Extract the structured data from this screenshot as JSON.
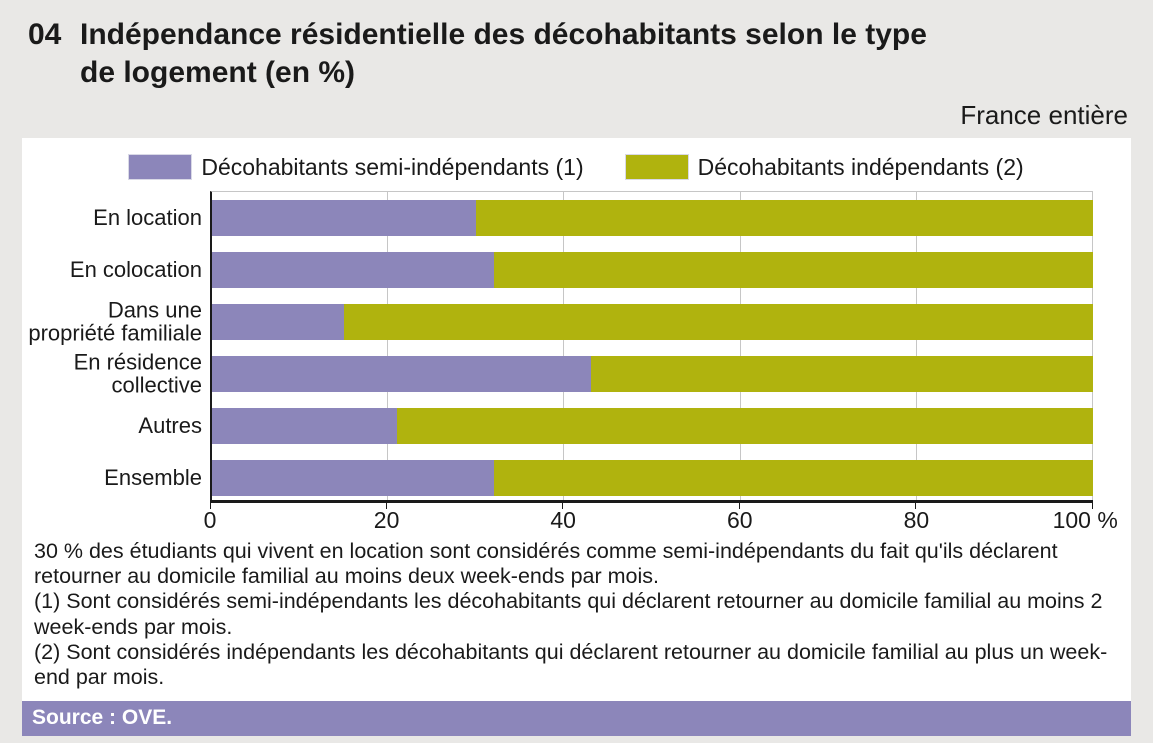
{
  "header": {
    "figure_number": "04",
    "title_line1": "Indépendance résidentielle des décohabitants selon le type",
    "title_line2": "de logement (en %)",
    "scope_label": "France entière"
  },
  "colors": {
    "semi_independants": "#8c86ba",
    "independants": "#b0b30e",
    "source_bar": "#8c86ba",
    "gridline": "#c6c6c6",
    "panel": "#ffffff",
    "page_background": "#e9e8e6"
  },
  "legend": {
    "items": [
      {
        "label": "Décohabitants semi-indépendants (1)",
        "color": "#8c86ba"
      },
      {
        "label": "Décohabitants indépendants (2)",
        "color": "#b0b30e"
      }
    ]
  },
  "chart_data": {
    "type": "bar",
    "orientation": "horizontal",
    "stacked": true,
    "categories": [
      "En location",
      "En colocation",
      "Dans une propriété familiale",
      "En résidence collective",
      "Autres",
      "Ensemble"
    ],
    "series": [
      {
        "name": "Décohabitants semi-indépendants (1)",
        "color": "#8c86ba",
        "values": [
          30,
          32,
          15,
          43,
          21,
          32
        ]
      },
      {
        "name": "Décohabitants indépendants (2)",
        "color": "#b0b30e",
        "values": [
          70,
          68,
          85,
          57,
          79,
          68
        ]
      }
    ],
    "xlim": [
      0,
      100
    ],
    "xtick_values": [
      0,
      20,
      40,
      60,
      80,
      100
    ],
    "xtick_labels": [
      "0",
      "20",
      "40",
      "60",
      "80",
      "100 %"
    ],
    "grid": true,
    "legend_position": "top"
  },
  "notes": [
    "30 % des étudiants qui vivent en location sont considérés comme semi-indépendants du fait qu'ils déclarent retourner au domicile familial au moins deux week-ends par mois.",
    "(1) Sont considérés semi-indépendants les décohabitants qui déclarent retourner au domicile familial au moins 2 week-ends par mois.",
    "(2) Sont considérés indépendants les décohabitants qui déclarent retourner au domicile familial au plus un week-end par mois."
  ],
  "source": "Source : OVE."
}
